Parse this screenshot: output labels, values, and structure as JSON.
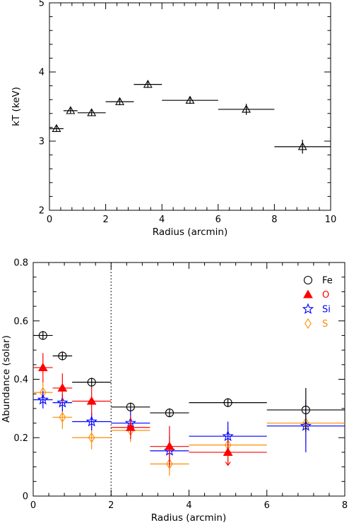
{
  "chart_data": [
    {
      "type": "scatter",
      "title": "",
      "xlabel": "Radius (arcmin)",
      "ylabel": "kT (keV)",
      "xlim": [
        0,
        10
      ],
      "ylim": [
        2,
        5
      ],
      "xticks": [
        "0",
        "2",
        "4",
        "6",
        "8",
        "10"
      ],
      "yticks": [
        "2",
        "3",
        "4",
        "5"
      ],
      "marker": "open-triangle",
      "color": "#000000",
      "points": [
        {
          "x": 0.25,
          "xerr": 0.25,
          "y": 3.18,
          "yerr": 0.04
        },
        {
          "x": 0.75,
          "xerr": 0.25,
          "y": 3.44,
          "yerr": 0.04
        },
        {
          "x": 1.5,
          "xerr": 0.5,
          "y": 3.41,
          "yerr": 0.04
        },
        {
          "x": 2.5,
          "xerr": 0.5,
          "y": 3.57,
          "yerr": 0.05
        },
        {
          "x": 3.5,
          "xerr": 0.5,
          "y": 3.82,
          "yerr": 0.05
        },
        {
          "x": 5.0,
          "xerr": 1.0,
          "y": 3.59,
          "yerr": 0.05
        },
        {
          "x": 7.0,
          "xerr": 1.0,
          "y": 3.46,
          "yerr": 0.08
        },
        {
          "x": 9.0,
          "xerr": 1.0,
          "y": 2.92,
          "yerr": 0.1
        }
      ]
    },
    {
      "type": "scatter",
      "title": "",
      "xlabel": "Radius (arcmin)",
      "ylabel": "Abundance (solar)",
      "xlim": [
        0,
        8
      ],
      "ylim": [
        0,
        0.8
      ],
      "xticks": [
        "0",
        "2",
        "4",
        "6",
        "8"
      ],
      "yticks": [
        "0",
        "0.2",
        "0.4",
        "0.6",
        "0.8"
      ],
      "vline_x": 2,
      "legend_position": "top-right",
      "series": [
        {
          "name": "Fe",
          "color": "#000000",
          "marker": "open-circle",
          "points": [
            {
              "x": 0.25,
              "xerr": 0.25,
              "y": 0.55,
              "yerr": 0.015
            },
            {
              "x": 0.75,
              "xerr": 0.25,
              "y": 0.48,
              "yerr": 0.015
            },
            {
              "x": 1.5,
              "xerr": 0.5,
              "y": 0.39,
              "yerr": 0.015
            },
            {
              "x": 2.5,
              "xerr": 0.5,
              "y": 0.305,
              "yerr": 0.015
            },
            {
              "x": 3.5,
              "xerr": 0.5,
              "y": 0.285,
              "yerr": 0.015
            },
            {
              "x": 5.0,
              "xerr": 1.0,
              "y": 0.32,
              "yerr": 0.015
            },
            {
              "x": 7.0,
              "xerr": 1.0,
              "y": 0.295,
              "yerr": 0.075
            }
          ]
        },
        {
          "name": "O",
          "color": "#ff0000",
          "marker": "filled-triangle",
          "points": [
            {
              "x": 0.25,
              "xerr": 0.25,
              "y": 0.44,
              "yerr": 0.05
            },
            {
              "x": 0.75,
              "xerr": 0.25,
              "y": 0.37,
              "yerr": 0.05
            },
            {
              "x": 1.5,
              "xerr": 0.5,
              "y": 0.325,
              "yerr": 0.05
            },
            {
              "x": 2.5,
              "xerr": 0.5,
              "y": 0.235,
              "yerr": 0.04
            },
            {
              "x": 3.5,
              "xerr": 0.5,
              "y": 0.17,
              "yerr": 0.07
            },
            {
              "x": 5.0,
              "xerr": 1.0,
              "y": 0.15,
              "yerr": 0.04,
              "upper_limit": true
            }
          ]
        },
        {
          "name": "Si",
          "color": "#0000ff",
          "marker": "open-star",
          "points": [
            {
              "x": 0.25,
              "xerr": 0.25,
              "y": 0.33,
              "yerr": 0.03
            },
            {
              "x": 0.75,
              "xerr": 0.25,
              "y": 0.32,
              "yerr": 0.03
            },
            {
              "x": 1.5,
              "xerr": 0.5,
              "y": 0.255,
              "yerr": 0.03
            },
            {
              "x": 2.5,
              "xerr": 0.5,
              "y": 0.25,
              "yerr": 0.04
            },
            {
              "x": 3.5,
              "xerr": 0.5,
              "y": 0.155,
              "yerr": 0.05
            },
            {
              "x": 5.0,
              "xerr": 1.0,
              "y": 0.205,
              "yerr": 0.05
            },
            {
              "x": 7.0,
              "xerr": 1.0,
              "y": 0.24,
              "yerr": 0.09
            }
          ]
        },
        {
          "name": "S",
          "color": "#ff8c00",
          "marker": "open-diamond",
          "points": [
            {
              "x": 0.25,
              "xerr": 0.25,
              "y": 0.355,
              "yerr": 0.04
            },
            {
              "x": 0.75,
              "xerr": 0.25,
              "y": 0.27,
              "yerr": 0.04
            },
            {
              "x": 1.5,
              "xerr": 0.5,
              "y": 0.2,
              "yerr": 0.04
            },
            {
              "x": 2.5,
              "xerr": 0.5,
              "y": 0.225,
              "yerr": 0.04
            },
            {
              "x": 3.5,
              "xerr": 0.5,
              "y": 0.11,
              "yerr": 0.04
            },
            {
              "x": 5.0,
              "xerr": 1.0,
              "y": 0.175,
              "yerr": 0.06
            },
            {
              "x": 7.0,
              "xerr": 1.0,
              "y": 0.25,
              "yerr": 0.07
            }
          ]
        }
      ]
    }
  ]
}
